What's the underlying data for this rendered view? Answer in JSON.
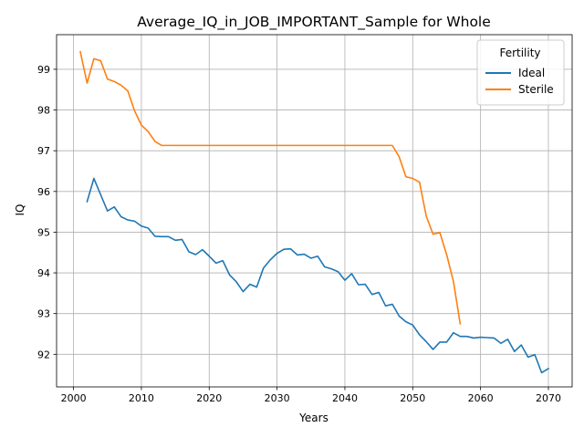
{
  "chart_data": {
    "type": "line",
    "title": "Average_IQ_in_JOB_IMPORTANT_Sample for Whole",
    "xlabel": "Years",
    "ylabel": "IQ",
    "xlim": [
      1997.5,
      2073.5
    ],
    "ylim": [
      91.2,
      99.85
    ],
    "xticks": [
      2000,
      2010,
      2020,
      2030,
      2040,
      2050,
      2060,
      2070
    ],
    "yticks": [
      92,
      93,
      94,
      95,
      96,
      97,
      98,
      99
    ],
    "grid": true,
    "legend": {
      "title": "Fertility",
      "placement": "top-right"
    },
    "series": [
      {
        "name": "Ideal",
        "color": "#1f77b4",
        "x": [
          2002,
          2003,
          2004,
          2005,
          2006,
          2007,
          2008,
          2009,
          2010,
          2011,
          2012,
          2013,
          2014,
          2015,
          2016,
          2017,
          2018,
          2019,
          2020,
          2021,
          2022,
          2023,
          2024,
          2025,
          2026,
          2027,
          2028,
          2029,
          2030,
          2031,
          2032,
          2033,
          2034,
          2035,
          2036,
          2037,
          2038,
          2039,
          2040,
          2041,
          2042,
          2043,
          2044,
          2045,
          2046,
          2047,
          2048,
          2049,
          2050,
          2051,
          2052,
          2053,
          2054,
          2055,
          2056,
          2057,
          2058,
          2059,
          2060,
          2061,
          2062,
          2063,
          2064,
          2065,
          2066,
          2067,
          2068,
          2069,
          2070
        ],
        "y": [
          95.75,
          96.32,
          95.92,
          95.52,
          95.62,
          95.38,
          95.3,
          95.27,
          95.15,
          95.1,
          94.9,
          94.89,
          94.89,
          94.8,
          94.82,
          94.52,
          94.45,
          94.57,
          94.41,
          94.24,
          94.3,
          93.95,
          93.78,
          93.54,
          93.72,
          93.65,
          94.12,
          94.32,
          94.48,
          94.58,
          94.59,
          94.44,
          94.46,
          94.36,
          94.41,
          94.15,
          94.1,
          94.03,
          93.82,
          93.98,
          93.71,
          93.72,
          93.47,
          93.52,
          93.19,
          93.23,
          92.94,
          92.8,
          92.72,
          92.48,
          92.31,
          92.12,
          92.3,
          92.3,
          92.53,
          92.44,
          92.44,
          92.4,
          92.42,
          92.41,
          92.4,
          92.27,
          92.37,
          92.07,
          92.23,
          91.93,
          91.99,
          91.55,
          91.65
        ]
      },
      {
        "name": "Sterile",
        "color": "#ff7f0e",
        "x": [
          2001,
          2002,
          2003,
          2004,
          2005,
          2006,
          2007,
          2008,
          2009,
          2010,
          2011,
          2012,
          2013,
          2014,
          2015,
          2016,
          2017,
          2018,
          2019,
          2020,
          2021,
          2022,
          2023,
          2024,
          2025,
          2026,
          2027,
          2028,
          2029,
          2030,
          2031,
          2032,
          2033,
          2034,
          2035,
          2036,
          2037,
          2038,
          2039,
          2040,
          2041,
          2042,
          2043,
          2044,
          2045,
          2046,
          2047,
          2048,
          2049,
          2050,
          2051,
          2052,
          2053,
          2054,
          2055,
          2056,
          2057
        ],
        "y": [
          99.43,
          98.66,
          99.26,
          99.21,
          98.76,
          98.7,
          98.61,
          98.47,
          97.98,
          97.63,
          97.47,
          97.23,
          97.13,
          97.13,
          97.13,
          97.13,
          97.13,
          97.13,
          97.13,
          97.13,
          97.13,
          97.13,
          97.13,
          97.13,
          97.13,
          97.13,
          97.13,
          97.13,
          97.13,
          97.13,
          97.13,
          97.13,
          97.13,
          97.13,
          97.13,
          97.13,
          97.13,
          97.13,
          97.13,
          97.13,
          97.13,
          97.13,
          97.13,
          97.13,
          97.13,
          97.13,
          97.13,
          96.85,
          96.36,
          96.32,
          96.23,
          95.39,
          94.95,
          94.99,
          94.45,
          93.79,
          92.75
        ]
      }
    ]
  }
}
